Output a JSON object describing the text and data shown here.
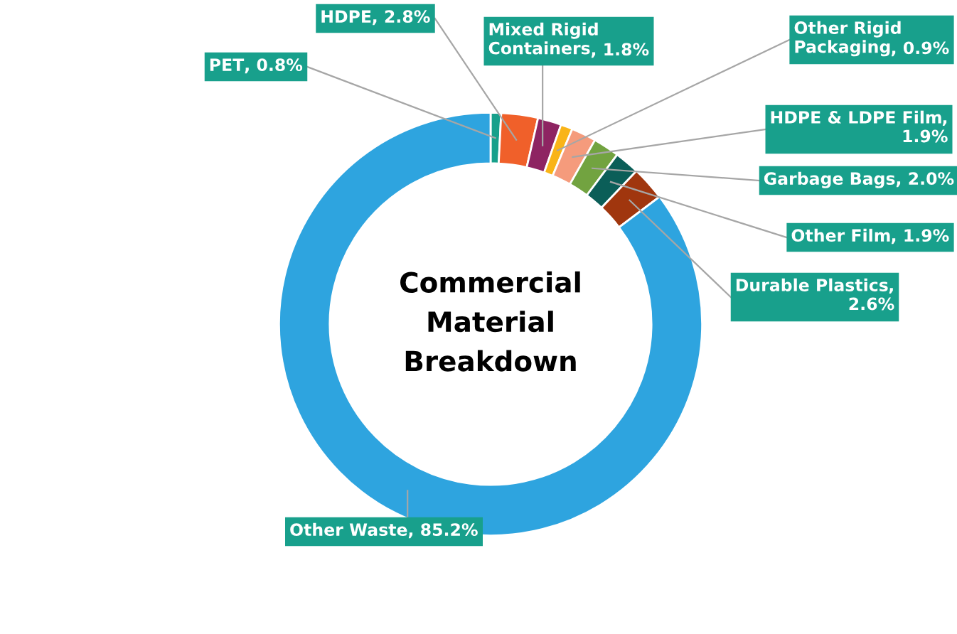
{
  "chart_data": {
    "type": "donut",
    "title": "Commercial Material Breakdown",
    "categories": [
      "PET",
      "HDPE",
      "Mixed Rigid Containers",
      "Other Rigid Packaging",
      "HDPE & LDPE Film",
      "Garbage Bags",
      "Other Film",
      "Durable Plastics",
      "Other Waste"
    ],
    "values": [
      0.8,
      2.8,
      1.8,
      0.9,
      1.9,
      2.0,
      1.9,
      2.6,
      85.2
    ],
    "value_labels": [
      ", 0.8%",
      ", 2.8%",
      ", 1.8%",
      ", 0.9%",
      ", 1.9%",
      ", 2.0%",
      ", 1.9%",
      ", 2.6%",
      ", 85.2%"
    ],
    "colors": [
      "#17a08b",
      "#f0602a",
      "#8e2462",
      "#f9b418",
      "#f59b7c",
      "#72a340",
      "#0b5e58",
      "#a0360e",
      "#2ea4df"
    ],
    "legend": false
  }
}
